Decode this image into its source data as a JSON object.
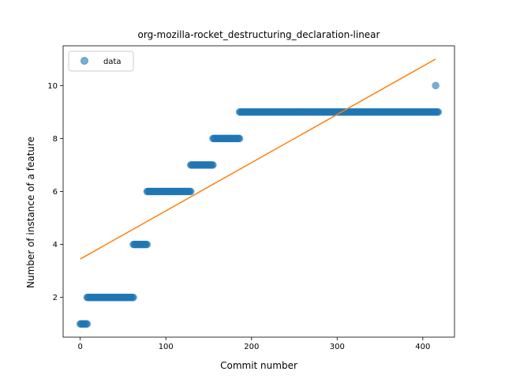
{
  "chart_data": {
    "type": "scatter",
    "title": "org-mozilla-rocket_destructuring_declaration-linear",
    "xlabel": "Commit number",
    "ylabel": "Number of instance of a feature",
    "xlim": [
      -20,
      437
    ],
    "ylim": [
      0.5,
      11.5
    ],
    "xticks": [
      0,
      100,
      200,
      300,
      400
    ],
    "yticks": [
      2,
      4,
      6,
      8,
      10
    ],
    "grid": false,
    "legend": {
      "placement": "top-left",
      "entries": [
        "data"
      ]
    },
    "series": [
      {
        "name": "data",
        "kind": "scatter",
        "color": "#1f77b4",
        "segments": [
          {
            "x_start": 0,
            "x_end": 8,
            "y": 1
          },
          {
            "x_start": 8,
            "x_end": 62,
            "y": 2
          },
          {
            "x_start": 62,
            "x_end": 78,
            "y": 4
          },
          {
            "x_start": 78,
            "x_end": 129,
            "y": 6
          },
          {
            "x_start": 129,
            "x_end": 155,
            "y": 7
          },
          {
            "x_start": 155,
            "x_end": 186,
            "y": 8
          },
          {
            "x_start": 186,
            "x_end": 418,
            "y": 9
          }
        ],
        "points": [
          {
            "x": 415,
            "y": 10
          }
        ]
      },
      {
        "kind": "line",
        "color": "#ff7f0e",
        "x": [
          0,
          415
        ],
        "y": [
          3.45,
          11.0
        ]
      }
    ]
  }
}
